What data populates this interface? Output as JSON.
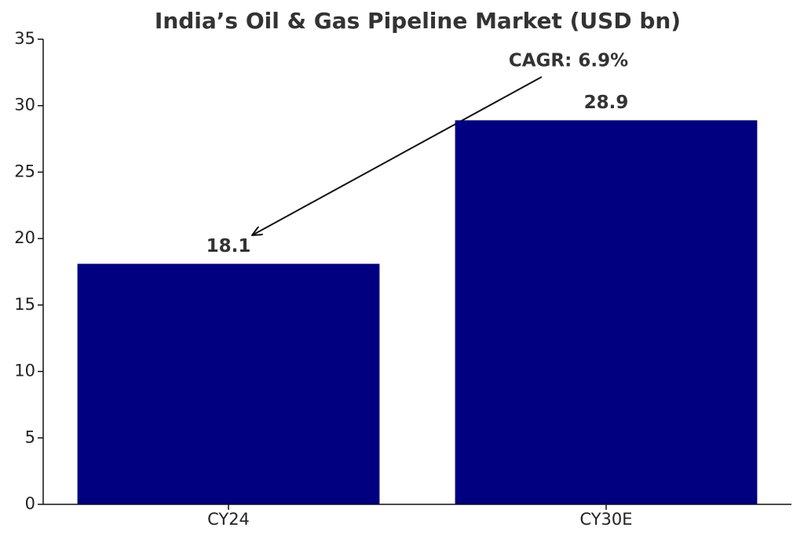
{
  "chart_data": {
    "type": "bar",
    "title": "India’s Oil & Gas Pipeline Market (USD bn)",
    "categories": [
      "CY24",
      "CY30E"
    ],
    "values": [
      18.1,
      28.9
    ],
    "color": "#000080",
    "annotation": "CAGR: 6.9%",
    "ylim": [
      0,
      35
    ],
    "yticks": [
      0,
      5,
      10,
      15,
      20,
      25,
      30,
      35
    ],
    "grid": false
  }
}
